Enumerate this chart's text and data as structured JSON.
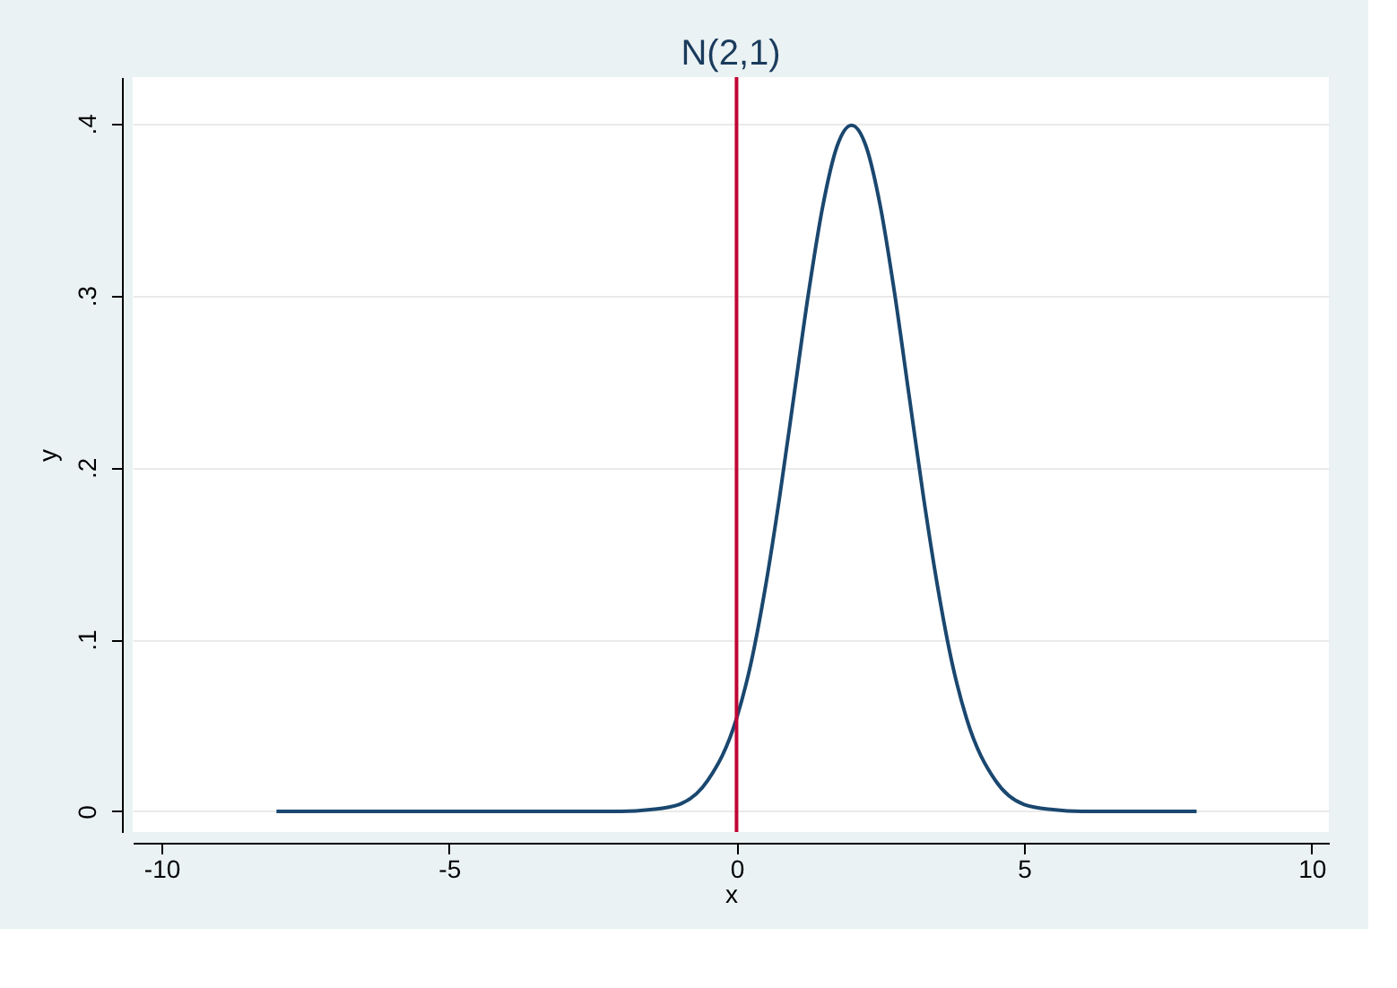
{
  "chart_data": {
    "type": "line",
    "title": "N(2,1)",
    "xlabel": "x",
    "ylabel": "y",
    "x": [
      -8,
      -6,
      -4,
      -2,
      -1.5,
      -1,
      -0.5,
      0,
      0.25,
      0.5,
      0.75,
      1,
      1.25,
      1.5,
      1.75,
      2,
      2.25,
      2.5,
      2.75,
      3,
      3.25,
      3.5,
      3.75,
      4,
      4.5,
      5,
      5.5,
      6,
      8
    ],
    "series": [
      {
        "color": "#1a476f",
        "values": [
          0,
          0,
          0,
          0,
          0.001,
          0.004,
          0.018,
          0.054,
          0.086,
          0.13,
          0.183,
          0.242,
          0.301,
          0.352,
          0.387,
          0.399,
          0.387,
          0.352,
          0.301,
          0.242,
          0.183,
          0.13,
          0.086,
          0.054,
          0.018,
          0.004,
          0.001,
          0,
          0
        ]
      }
    ],
    "xlim": [
      -10.5,
      10.3
    ],
    "ylim": [
      -0.012,
      0.427
    ],
    "xticks": [
      -10,
      -5,
      0,
      5,
      10
    ],
    "yticks": [
      {
        "value": 0,
        "label": "0"
      },
      {
        "value": 0.1,
        "label": ".1"
      },
      {
        "value": 0.2,
        "label": ".2"
      },
      {
        "value": 0.3,
        "label": ".3"
      },
      {
        "value": 0.4,
        "label": ".4"
      }
    ],
    "ref_lines": [
      {
        "axis": "x",
        "value": 0,
        "color": "#c10534"
      }
    ],
    "grid": "y",
    "marker": "none",
    "line_style": "solid"
  }
}
